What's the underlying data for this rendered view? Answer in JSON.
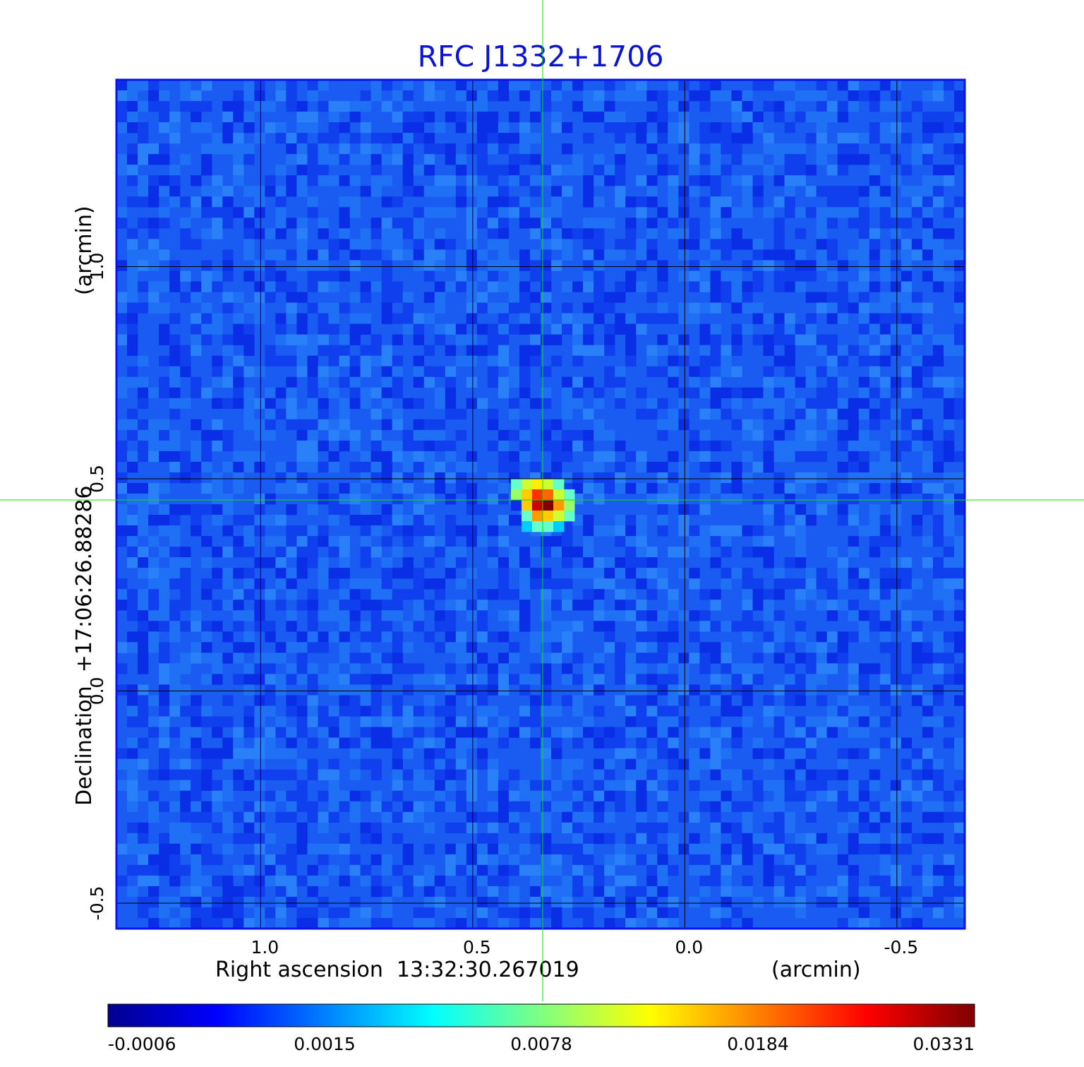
{
  "chart_data": {
    "type": "heatmap",
    "title": "RFC J1332+1706",
    "colors": {
      "title": "#0a14d2",
      "crosshair": "#00e600",
      "grid": "#000000",
      "axis_text": "#000000",
      "frame": "#0a14e6"
    },
    "xaxis": {
      "label": "Right ascension  13:32:30.267019",
      "unit": "(arcmin)",
      "range": [
        1.34,
        -0.66
      ],
      "ticks": [
        1.0,
        0.5,
        0.0,
        -0.5
      ],
      "tick_labels": [
        "1.0",
        "0.5",
        "0.0",
        "-0.5"
      ]
    },
    "yaxis": {
      "label": "Declination  +17:06:26.88286",
      "unit": "(arcmin)",
      "range": [
        -0.56,
        1.44
      ],
      "ticks": [
        -0.5,
        0.0,
        0.5,
        1.0
      ],
      "tick_labels": [
        "-0.5",
        "0.0",
        "0.5",
        "1.0"
      ]
    },
    "grid": true,
    "crosshair": {
      "ra_offset": 0.335,
      "dec_offset": 0.45
    },
    "source": {
      "ra_offset": 0.335,
      "dec_offset": 0.45,
      "peak": 0.0331
    },
    "colormap": "jet",
    "colorbar": {
      "orientation": "horizontal",
      "position": "bottom",
      "tick_labels": [
        "-0.0006",
        "0.0015",
        "0.0078",
        "0.0184",
        "0.0331"
      ],
      "stops": [
        "#00008f",
        "#0000ff",
        "#0080ff",
        "#00ffff",
        "#80ff80",
        "#ffff00",
        "#ff8000",
        "#ff0000",
        "#800000"
      ]
    }
  }
}
